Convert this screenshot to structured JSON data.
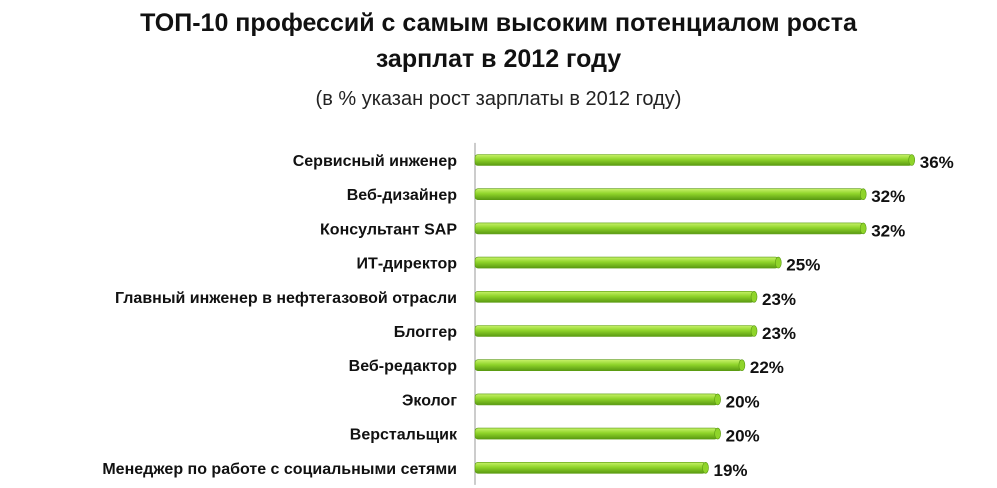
{
  "colors": {
    "bar_light": "#c8f26a",
    "bar_mid": "#8fd42a",
    "bar_dark": "#5a9a12",
    "axis": "#9a9a9a"
  },
  "chart_data": {
    "type": "bar",
    "orientation": "horizontal",
    "title_line1": "ТОП-10 профессий с самым высоким потенциалом роста",
    "title_line2": "зарплат в 2012 году",
    "subtitle": "(в % указан рост зарплаты в 2012 году)",
    "xlabel": "",
    "ylabel": "",
    "unit": "%",
    "xlim": [
      0,
      38
    ],
    "grid": false,
    "categories": [
      "Сервисный инженер",
      "Веб-дизайнер",
      "Консультант SAP",
      "ИТ-директор",
      "Главный инженер в нефтегазовой отрасли",
      "Блоггер",
      "Веб-редактор",
      "Эколог",
      "Верстальщик",
      "Менеджер по работе с социальными сетями"
    ],
    "values": [
      36,
      32,
      32,
      25,
      23,
      23,
      22,
      20,
      20,
      19
    ],
    "value_labels": [
      "36%",
      "32%",
      "32%",
      "25%",
      "23%",
      "23%",
      "22%",
      "20%",
      "20%",
      "19%"
    ]
  }
}
